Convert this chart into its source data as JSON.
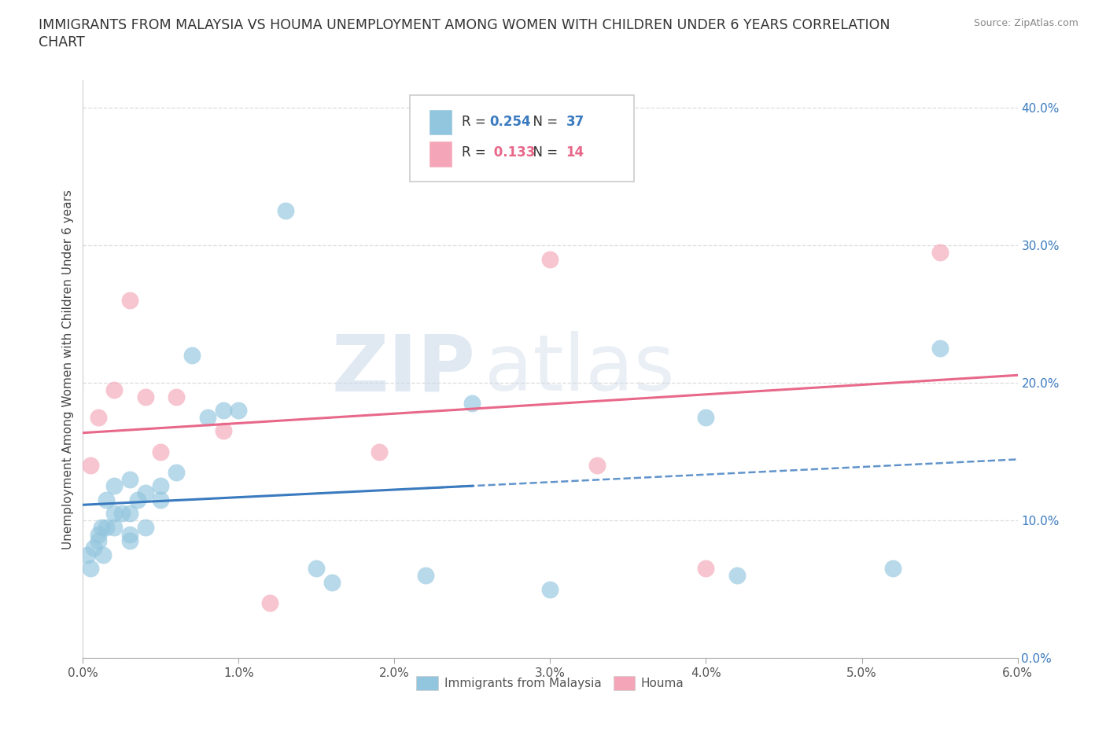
{
  "title_line1": "IMMIGRANTS FROM MALAYSIA VS HOUMA UNEMPLOYMENT AMONG WOMEN WITH CHILDREN UNDER 6 YEARS CORRELATION",
  "title_line2": "CHART",
  "source": "Source: ZipAtlas.com",
  "xlabel_label": "Immigrants from Malaysia",
  "ylabel_label": "Unemployment Among Women with Children Under 6 years",
  "xlim": [
    0.0,
    0.06
  ],
  "ylim": [
    0.0,
    0.42
  ],
  "xticks": [
    0.0,
    0.01,
    0.02,
    0.03,
    0.04,
    0.05,
    0.06
  ],
  "xtick_labels": [
    "0.0%",
    "1.0%",
    "2.0%",
    "3.0%",
    "4.0%",
    "5.0%",
    "6.0%"
  ],
  "yticks": [
    0.0,
    0.1,
    0.2,
    0.3,
    0.4
  ],
  "ytick_labels": [
    "0.0%",
    "10.0%",
    "20.0%",
    "30.0%",
    "40.0%"
  ],
  "blue_R": 0.254,
  "blue_N": 37,
  "pink_R": 0.133,
  "pink_N": 14,
  "blue_color": "#92c5de",
  "pink_color": "#f4a6b8",
  "blue_line_color": "#3a7abf",
  "pink_line_color": "#e8688a",
  "blue_scatter_x": [
    0.0003,
    0.0005,
    0.0007,
    0.001,
    0.001,
    0.0012,
    0.0013,
    0.0015,
    0.0015,
    0.002,
    0.002,
    0.002,
    0.0025,
    0.003,
    0.003,
    0.003,
    0.003,
    0.0035,
    0.004,
    0.004,
    0.005,
    0.005,
    0.006,
    0.007,
    0.008,
    0.009,
    0.01,
    0.013,
    0.015,
    0.016,
    0.022,
    0.025,
    0.03,
    0.04,
    0.042,
    0.052,
    0.055
  ],
  "blue_scatter_y": [
    0.075,
    0.065,
    0.08,
    0.085,
    0.09,
    0.095,
    0.075,
    0.095,
    0.115,
    0.095,
    0.105,
    0.125,
    0.105,
    0.105,
    0.09,
    0.13,
    0.085,
    0.115,
    0.12,
    0.095,
    0.125,
    0.115,
    0.135,
    0.22,
    0.175,
    0.18,
    0.18,
    0.325,
    0.065,
    0.055,
    0.06,
    0.185,
    0.05,
    0.175,
    0.06,
    0.065,
    0.225
  ],
  "pink_scatter_x": [
    0.0005,
    0.001,
    0.002,
    0.003,
    0.004,
    0.005,
    0.006,
    0.009,
    0.012,
    0.019,
    0.03,
    0.033,
    0.04,
    0.055
  ],
  "pink_scatter_y": [
    0.14,
    0.175,
    0.195,
    0.26,
    0.19,
    0.15,
    0.19,
    0.165,
    0.04,
    0.15,
    0.29,
    0.14,
    0.065,
    0.295
  ],
  "watermark_zip": "ZIP",
  "watermark_atlas": "atlas",
  "background_color": "#ffffff",
  "grid_color": "#dddddd"
}
